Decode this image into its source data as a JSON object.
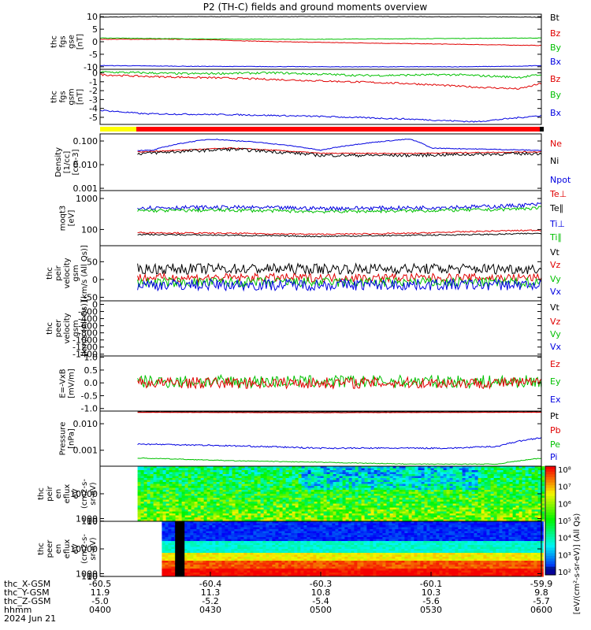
{
  "title": "P2 (TH-C) fields and ground moments overview",
  "colors": {
    "black": "#000000",
    "red": "#e00000",
    "green": "#00c000",
    "blue": "#0000e0"
  },
  "chart_data": [
    {
      "type": "line",
      "ylabel": [
        "thc",
        "fgs",
        "gse",
        "[nT]"
      ],
      "ylim": [
        -11,
        11
      ],
      "ticks": [
        {
          "v": 10,
          "l": "10"
        },
        {
          "v": 5,
          "l": "5"
        },
        {
          "v": 0,
          "l": "0"
        },
        {
          "v": -5,
          "l": "-5"
        },
        {
          "v": -10,
          "l": "-10"
        }
      ],
      "legend": [
        {
          "name": "Bt",
          "color": "black"
        },
        {
          "name": "Bz",
          "color": "red"
        },
        {
          "name": "By",
          "color": "green"
        },
        {
          "name": "Bx",
          "color": "blue"
        }
      ],
      "series": [
        {
          "name": "Bt",
          "color": "black",
          "x": [
            0,
            0.1,
            0.3,
            0.5,
            0.7,
            0.9,
            1
          ],
          "y": [
            9.8,
            10,
            10,
            10,
            10,
            9.9,
            9.8
          ],
          "noise": 0.1
        },
        {
          "name": "Bz",
          "color": "red",
          "x": [
            0,
            0.2,
            0.4,
            0.6,
            0.8,
            1
          ],
          "y": [
            1,
            1,
            0,
            -0.5,
            -1,
            -1.5
          ],
          "noise": 0.1
        },
        {
          "name": "By",
          "color": "green",
          "x": [
            0,
            0.3,
            0.5,
            0.7,
            1
          ],
          "y": [
            1.5,
            1,
            1,
            1.2,
            1.5
          ],
          "noise": 0.1
        },
        {
          "name": "Bx",
          "color": "blue",
          "x": [
            0,
            0.2,
            0.5,
            0.8,
            0.95,
            1
          ],
          "y": [
            -9.5,
            -9.8,
            -10,
            -10,
            -9.8,
            -9.5
          ],
          "noise": 0.1
        }
      ]
    },
    {
      "type": "line",
      "ylabel": [
        "thc",
        "fgs",
        "gsm",
        "[nT]"
      ],
      "ylim": [
        -5.8,
        0.4
      ],
      "ticks": [
        {
          "v": 0,
          "l": "0"
        },
        {
          "v": -1,
          "l": "-1"
        },
        {
          "v": -2,
          "l": "-2"
        },
        {
          "v": -3,
          "l": "-3"
        },
        {
          "v": -4,
          "l": "-4"
        },
        {
          "v": -5,
          "l": "-5"
        }
      ],
      "legend": [
        {
          "name": "Bz",
          "color": "red"
        },
        {
          "name": "By",
          "color": "green"
        },
        {
          "name": "Bx",
          "color": "blue"
        }
      ],
      "series": [
        {
          "name": "Bz",
          "color": "red",
          "x": [
            0,
            0.1,
            0.3,
            0.5,
            0.7,
            0.85,
            0.95,
            1
          ],
          "y": [
            -0.2,
            -0.4,
            -0.6,
            -0.9,
            -1.2,
            -1.6,
            -1.8,
            -1.2
          ],
          "noise": 0.1
        },
        {
          "name": "By",
          "color": "green",
          "x": [
            0,
            0.2,
            0.4,
            0.6,
            0.8,
            0.95,
            1
          ],
          "y": [
            0.1,
            -0.1,
            0,
            -0.3,
            -0.2,
            -0.5,
            -0.2
          ],
          "noise": 0.12
        },
        {
          "name": "Bx",
          "color": "blue",
          "x": [
            0,
            0.1,
            0.3,
            0.5,
            0.7,
            0.85,
            1
          ],
          "y": [
            -4.2,
            -4.6,
            -4.7,
            -4.9,
            -5.2,
            -5.5,
            -4.8
          ],
          "noise": 0.08
        }
      ]
    },
    {
      "type": "line",
      "log": true,
      "ylabel": [
        "Density",
        "[1/cc]",
        "[cm-3]"
      ],
      "ylim": [
        0.0008,
        0.2
      ],
      "ticks": [
        {
          "v": 0.1,
          "l": "0.100"
        },
        {
          "v": 0.01,
          "l": "0.010"
        },
        {
          "v": 0.001,
          "l": "0.001"
        }
      ],
      "legend": [
        {
          "name": "Ne",
          "color": "red"
        },
        {
          "name": "Ni",
          "color": "black"
        },
        {
          "name": "Npot",
          "color": "blue"
        }
      ],
      "series": [
        {
          "name": "Ne",
          "color": "red",
          "x": [
            0.1,
            0.3,
            0.5,
            0.7,
            1
          ],
          "y": [
            0.035,
            0.05,
            0.03,
            0.03,
            0.035
          ],
          "noise": 0.05
        },
        {
          "name": "Ni",
          "color": "black",
          "x": [
            0.1,
            0.3,
            0.5,
            0.7,
            1
          ],
          "y": [
            0.03,
            0.045,
            0.025,
            0.025,
            0.03
          ],
          "noise": 0.15
        },
        {
          "name": "Npot",
          "color": "blue",
          "x": [
            0.12,
            0.25,
            0.35,
            0.5,
            0.7,
            0.75,
            1
          ],
          "y": [
            0.04,
            0.12,
            0.09,
            0.04,
            0.12,
            0.05,
            0.04
          ],
          "noise": 0.04
        }
      ]
    },
    {
      "type": "line",
      "log": true,
      "ylabel": [
        "moqt3",
        "[eV]"
      ],
      "ylim": [
        30,
        1800
      ],
      "ticks": [
        {
          "v": 1000,
          "l": "1000"
        },
        {
          "v": 100,
          "l": "100"
        }
      ],
      "legend": [
        {
          "name": "Te⊥",
          "color": "red"
        },
        {
          "name": "Te∥",
          "color": "black"
        },
        {
          "name": "Ti⊥",
          "color": "blue"
        },
        {
          "name": "Ti∥",
          "color": "green"
        }
      ],
      "series": [
        {
          "name": "Te⊥",
          "color": "red",
          "x": [
            0.05,
            0.3,
            0.5,
            0.7,
            0.9,
            1
          ],
          "y": [
            80,
            75,
            70,
            75,
            90,
            95
          ],
          "noise": 0.05
        },
        {
          "name": "Te∥",
          "color": "black",
          "x": [
            0.05,
            0.3,
            0.5,
            0.7,
            0.9,
            1
          ],
          "y": [
            70,
            65,
            60,
            65,
            70,
            75
          ],
          "noise": 0.05
        },
        {
          "name": "Ti⊥",
          "color": "blue",
          "x": [
            0,
            0.3,
            0.5,
            0.7,
            0.9,
            1
          ],
          "y": [
            500,
            520,
            480,
            500,
            560,
            650
          ],
          "noise": 0.15
        },
        {
          "name": "Ti∥",
          "color": "green",
          "x": [
            0,
            0.3,
            0.5,
            0.7,
            0.9,
            1
          ],
          "y": [
            400,
            420,
            380,
            400,
            440,
            500
          ],
          "noise": 0.12
        }
      ]
    },
    {
      "type": "line",
      "ylabel": [
        "thc",
        "peir",
        "velocity",
        "gsm",
        "[km/s (All Qs)]"
      ],
      "ylim": [
        -60,
        95
      ],
      "ticks": [
        {
          "v": 50,
          "l": "50"
        },
        {
          "v": 0,
          "l": "0"
        },
        {
          "v": -50,
          "l": "-50"
        }
      ],
      "legend": [
        {
          "name": "Vt",
          "color": "black"
        },
        {
          "name": "Vz",
          "color": "red"
        },
        {
          "name": "Vy",
          "color": "green"
        },
        {
          "name": "Vx",
          "color": "blue"
        }
      ],
      "series": [
        {
          "name": "Vt",
          "color": "black",
          "x": [
            0,
            1
          ],
          "y": [
            30,
            30
          ],
          "noise": 15
        },
        {
          "name": "Vz",
          "color": "red",
          "x": [
            0,
            1
          ],
          "y": [
            5,
            5
          ],
          "noise": 12
        },
        {
          "name": "Vy",
          "color": "green",
          "x": [
            0,
            1
          ],
          "y": [
            -8,
            -8
          ],
          "noise": 14
        },
        {
          "name": "Vx",
          "color": "blue",
          "x": [
            0,
            1
          ],
          "y": [
            -15,
            -15
          ],
          "noise": 16
        }
      ]
    },
    {
      "type": "line",
      "ylabel": [
        "thc",
        "peer",
        "velocity",
        "gsm",
        "[km/s (All Qs)]"
      ],
      "ylim": [
        -1450,
        100
      ],
      "ticks": [
        {
          "v": 0,
          "l": "0"
        },
        {
          "v": -200,
          "l": "-200"
        },
        {
          "v": -400,
          "l": "-400"
        },
        {
          "v": -600,
          "l": "-600"
        },
        {
          "v": -800,
          "l": "-800"
        },
        {
          "v": -1000,
          "l": "-1000"
        },
        {
          "v": -1200,
          "l": "-1200"
        },
        {
          "v": -1400,
          "l": "-1400"
        }
      ],
      "legend": [
        {
          "name": "Vt",
          "color": "black"
        },
        {
          "name": "Vz",
          "color": "red"
        },
        {
          "name": "Vy",
          "color": "green"
        },
        {
          "name": "Vx",
          "color": "blue"
        }
      ],
      "series": []
    },
    {
      "type": "line",
      "ylabel": [
        "E=-VxB",
        "[mV/m]"
      ],
      "ylim": [
        -1.1,
        1.05
      ],
      "ticks": [
        {
          "v": 1,
          "l": "1.0"
        },
        {
          "v": 0.5,
          "l": "0.5"
        },
        {
          "v": 0,
          "l": "0.0"
        },
        {
          "v": -0.5,
          "l": "-0.5"
        },
        {
          "v": -1,
          "l": "-1.0"
        }
      ],
      "legend": [
        {
          "name": "Ez",
          "color": "red"
        },
        {
          "name": "Ey",
          "color": "green"
        },
        {
          "name": "Ex",
          "color": "blue"
        }
      ],
      "series": [
        {
          "name": "Ey",
          "color": "green",
          "x": [
            0,
            1
          ],
          "y": [
            0.05,
            0.05
          ],
          "noise": 0.25
        },
        {
          "name": "Ez",
          "color": "red",
          "x": [
            0,
            1
          ],
          "y": [
            0,
            0
          ],
          "noise": 0.22
        }
      ]
    },
    {
      "type": "line",
      "log": true,
      "ylabel": [
        "Pressure",
        "[nPa]"
      ],
      "ylim": [
        0.00025,
        0.03
      ],
      "ticks": [
        {
          "v": 0.01,
          "l": "0.010"
        },
        {
          "v": 0.001,
          "l": "0.001"
        }
      ],
      "legend": [
        {
          "name": "Pt",
          "color": "black"
        },
        {
          "name": "Pb",
          "color": "red"
        },
        {
          "name": "Pe",
          "color": "green"
        },
        {
          "name": "Pi",
          "color": "blue"
        }
      ],
      "series": [
        {
          "name": "Pt",
          "color": "black",
          "x": [
            0,
            1
          ],
          "y": [
            0.028,
            0.028
          ],
          "noise": 0.01
        },
        {
          "name": "Pb",
          "color": "red",
          "x": [
            0,
            0.5,
            1
          ],
          "y": [
            0.027,
            0.026,
            0.027
          ],
          "noise": 0.01
        },
        {
          "name": "Pi",
          "color": "blue",
          "x": [
            0,
            0.2,
            0.5,
            0.8,
            0.9,
            1
          ],
          "y": [
            0.0018,
            0.0016,
            0.0012,
            0.0012,
            0.0014,
            0.003
          ],
          "noise": 0.06
        },
        {
          "name": "Pe",
          "color": "green",
          "x": [
            0,
            0.05,
            0.1,
            0.3,
            0.5,
            0.7,
            0.9,
            1
          ],
          "y": [
            0.0012,
            0.0005,
            0.0005,
            0.0004,
            0.00035,
            0.0003,
            0.0003,
            0.0005
          ],
          "noise": 0.03
        }
      ]
    },
    {
      "type": "heatmap",
      "ylabel": [
        "thc",
        "peir",
        "en",
        "eflux",
        "eV",
        "(cm2-s-",
        "sr-eV)"
      ],
      "ylim": [
        7,
        20000
      ],
      "ticks": [
        {
          "v": 10000,
          "l": "10000"
        },
        {
          "v": 1000,
          "l": "1000"
        },
        {
          "v": 100,
          "l": "100"
        },
        {
          "v": 10,
          "l": "10"
        }
      ],
      "colorbar": {
        "labels": [
          "10⁸",
          "10⁷",
          "10⁶",
          "10⁵",
          "10⁴",
          "10³",
          "10²"
        ],
        "unit": "[eV/(cm²-s-sr-eV)] (All Qs)"
      }
    },
    {
      "type": "heatmap",
      "ylabel": [
        "thc",
        "peer",
        "en",
        "eflux",
        "eV",
        "(cm2-s-",
        "sr-eV)"
      ],
      "ylim": [
        7,
        20000
      ],
      "ticks": [
        {
          "v": 10000,
          "l": "10000"
        },
        {
          "v": 1000,
          "l": "1000"
        },
        {
          "v": 100,
          "l": "100"
        },
        {
          "v": 10,
          "l": "10"
        }
      ]
    }
  ],
  "xaxis": {
    "ticks": [
      {
        "t": 0,
        "l": [
          "-60.5",
          "11.9",
          "-5.0",
          "0400"
        ]
      },
      {
        "t": 0.25,
        "l": [
          "-60.4",
          "11.3",
          "-5.2",
          "0430"
        ]
      },
      {
        "t": 0.5,
        "l": [
          "-60.3",
          "10.8",
          "-5.4",
          "0500"
        ]
      },
      {
        "t": 0.75,
        "l": [
          "-60.1",
          "10.3",
          "-5.6",
          "0530"
        ]
      },
      {
        "t": 1,
        "l": [
          "-59.9",
          "9.8",
          "-5.7",
          "0600"
        ]
      }
    ],
    "rowlabels": [
      "thc_X-GSM",
      "thc_Y-GSM",
      "thc_Z-GSM",
      "hhmm"
    ],
    "date": "2024 Jun 21"
  }
}
